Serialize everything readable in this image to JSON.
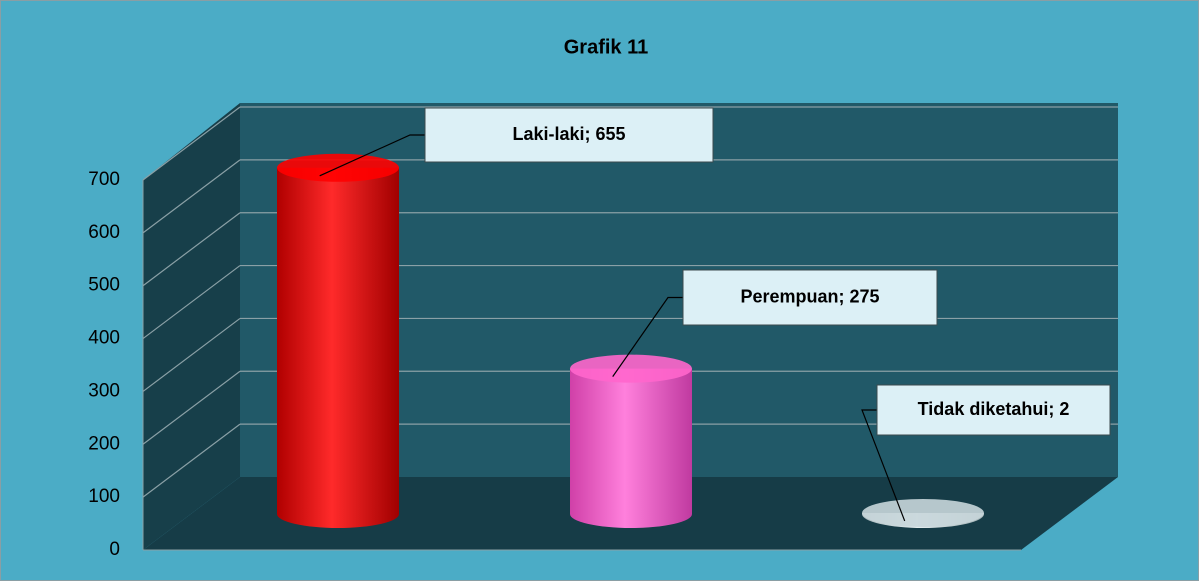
{
  "chart_data": {
    "type": "bar",
    "title": "Grafik 11",
    "categories": [
      "Laki-laki",
      "Perempuan",
      "Tidak diketahui"
    ],
    "values": [
      655,
      275,
      2
    ],
    "value_labels": [
      "Laki-laki; 655",
      "Perempuan; 275",
      "Tidak diketahui; 2"
    ],
    "colors": [
      "#ff0000",
      "#ff66cc",
      "#c8d6da"
    ],
    "ylim": [
      0,
      700
    ],
    "yticks": [
      0,
      100,
      200,
      300,
      400,
      500,
      600,
      700
    ],
    "grid": true
  }
}
